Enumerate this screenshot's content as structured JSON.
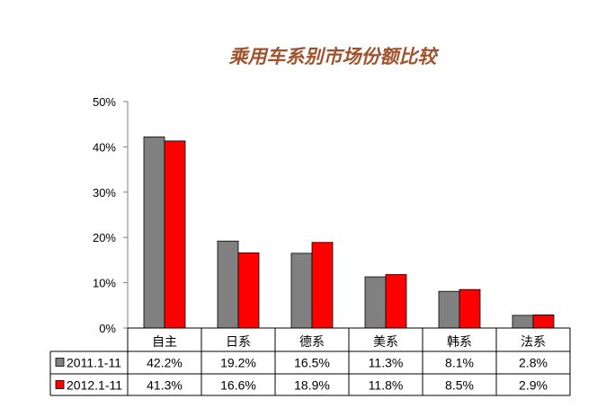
{
  "chart_data": {
    "type": "bar",
    "title": "乘用车系别市场份额比较",
    "categories": [
      "自主",
      "日系",
      "德系",
      "美系",
      "韩系",
      "法系"
    ],
    "series": [
      {
        "name": "2011.1-11",
        "values": [
          42.2,
          19.2,
          16.5,
          11.3,
          8.1,
          2.8
        ],
        "labels": [
          "42.2%",
          "19.2%",
          "16.5%",
          "11.3%",
          "8.1%",
          "2.8%"
        ],
        "color": "#808080"
      },
      {
        "name": "2012.1-11",
        "values": [
          41.3,
          16.6,
          18.9,
          11.8,
          8.5,
          2.9
        ],
        "labels": [
          "41.3%",
          "16.6%",
          "18.9%",
          "11.8%",
          "8.5%",
          "2.9%"
        ],
        "color": "#ff0000"
      }
    ],
    "yticks": [
      "0%",
      "10%",
      "20%",
      "30%",
      "40%",
      "50%"
    ],
    "ylim": [
      0,
      50
    ],
    "grid": false,
    "legend": "data-table"
  },
  "colors": {
    "title": "#a0522d",
    "axis": "#808080",
    "border": "#000000"
  }
}
